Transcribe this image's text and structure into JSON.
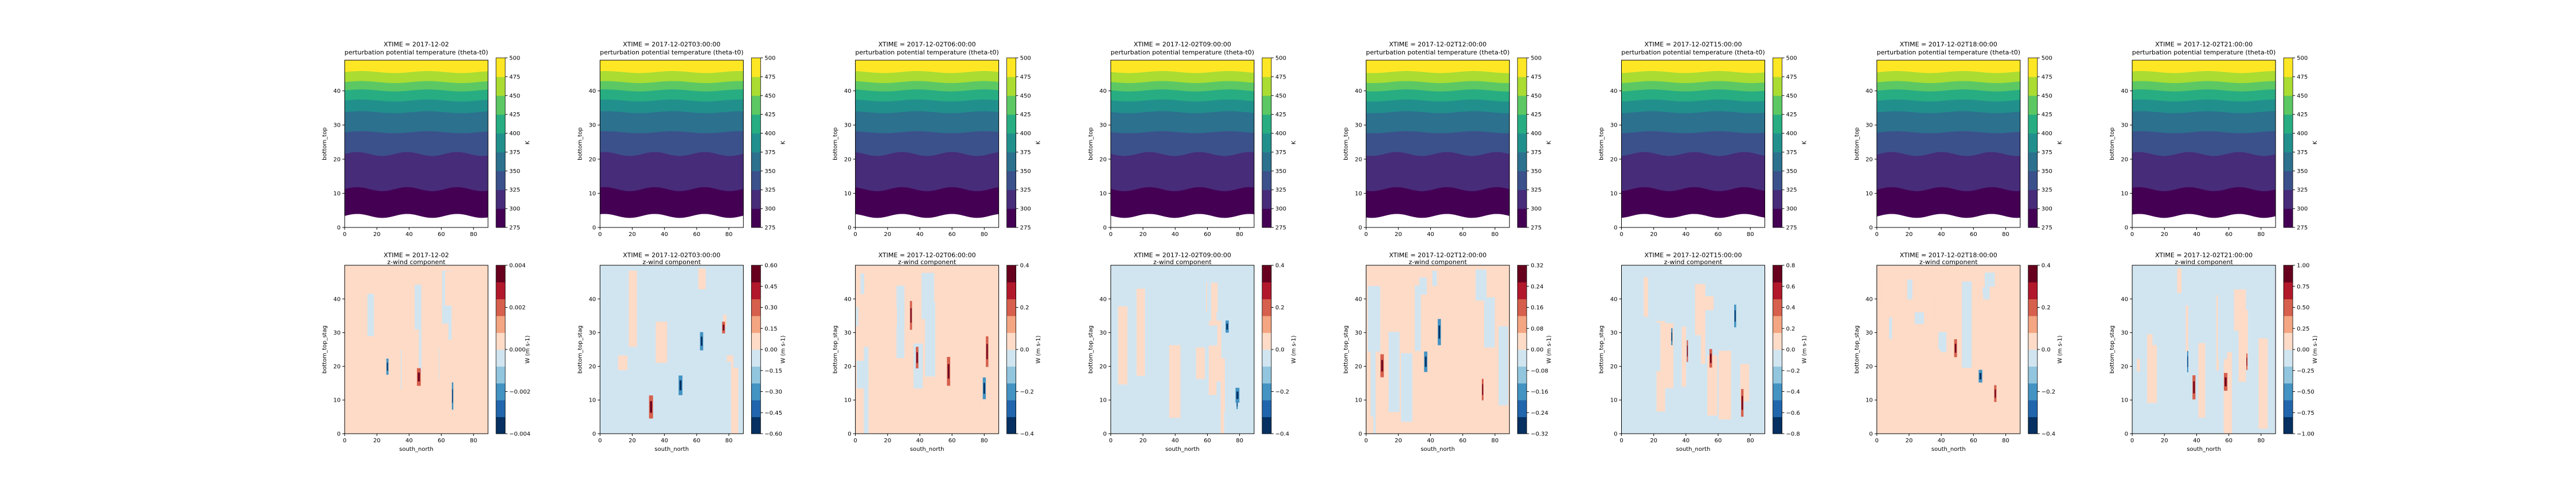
{
  "figure": {
    "top_row_title_line2": "perturbation potential temperature (theta-t0)",
    "bottom_row_title_line2": "z-wind component",
    "top_ylabel": "bottom_top",
    "bottom_ylabel": "bottom_top_stag",
    "bottom_xlabel": "south_north",
    "top_cbar_label": "K",
    "bottom_cbar_label": "W (m s-1)"
  },
  "chart_data": [
    {
      "type": "heatmap",
      "row": "theta",
      "title": "XTIME = 2017-12-02",
      "xlim": [
        0,
        89
      ],
      "ylim": [
        0,
        49
      ],
      "x_ticks": [
        "0",
        "20",
        "40",
        "60",
        "80"
      ],
      "y_ticks": [
        "0",
        "10",
        "20",
        "30",
        "40"
      ],
      "colormap": "viridis",
      "levels": [
        275,
        300,
        325,
        350,
        375,
        400,
        425,
        450,
        475,
        500
      ],
      "cbar_ticks": [
        "275",
        "300",
        "325",
        "350",
        "375",
        "400",
        "425",
        "450",
        "475",
        "500"
      ],
      "cbar_label": "K"
    },
    {
      "type": "heatmap",
      "row": "theta",
      "title": "XTIME = 2017-12-02T03:00:00",
      "xlim": [
        0,
        89
      ],
      "ylim": [
        0,
        49
      ],
      "x_ticks": [
        "0",
        "20",
        "40",
        "60",
        "80"
      ],
      "y_ticks": [
        "0",
        "10",
        "20",
        "30",
        "40"
      ],
      "colormap": "viridis",
      "levels": [
        275,
        300,
        325,
        350,
        375,
        400,
        425,
        450,
        475,
        500
      ],
      "cbar_ticks": [
        "275",
        "300",
        "325",
        "350",
        "375",
        "400",
        "425",
        "450",
        "475",
        "500"
      ],
      "cbar_label": "K"
    },
    {
      "type": "heatmap",
      "row": "theta",
      "title": "XTIME = 2017-12-02T06:00:00",
      "xlim": [
        0,
        89
      ],
      "ylim": [
        0,
        49
      ],
      "x_ticks": [
        "0",
        "20",
        "40",
        "60",
        "80"
      ],
      "y_ticks": [
        "0",
        "10",
        "20",
        "30",
        "40"
      ],
      "colormap": "viridis",
      "levels": [
        275,
        300,
        325,
        350,
        375,
        400,
        425,
        450,
        475,
        500
      ],
      "cbar_ticks": [
        "275",
        "300",
        "325",
        "350",
        "375",
        "400",
        "425",
        "450",
        "475",
        "500"
      ],
      "cbar_label": "K"
    },
    {
      "type": "heatmap",
      "row": "theta",
      "title": "XTIME = 2017-12-02T09:00:00",
      "xlim": [
        0,
        89
      ],
      "ylim": [
        0,
        49
      ],
      "x_ticks": [
        "0",
        "20",
        "40",
        "60",
        "80"
      ],
      "y_ticks": [
        "0",
        "10",
        "20",
        "30",
        "40"
      ],
      "colormap": "viridis",
      "levels": [
        275,
        300,
        325,
        350,
        375,
        400,
        425,
        450,
        475,
        500
      ],
      "cbar_ticks": [
        "275",
        "300",
        "325",
        "350",
        "375",
        "400",
        "425",
        "450",
        "475",
        "500"
      ],
      "cbar_label": "K"
    },
    {
      "type": "heatmap",
      "row": "theta",
      "title": "XTIME = 2017-12-02T12:00:00",
      "xlim": [
        0,
        89
      ],
      "ylim": [
        0,
        49
      ],
      "x_ticks": [
        "0",
        "20",
        "40",
        "60",
        "80"
      ],
      "y_ticks": [
        "0",
        "10",
        "20",
        "30",
        "40"
      ],
      "colormap": "viridis",
      "levels": [
        275,
        300,
        325,
        350,
        375,
        400,
        425,
        450,
        475,
        500
      ],
      "cbar_ticks": [
        "275",
        "300",
        "325",
        "350",
        "375",
        "400",
        "425",
        "450",
        "475",
        "500"
      ],
      "cbar_label": "K"
    },
    {
      "type": "heatmap",
      "row": "theta",
      "title": "XTIME = 2017-12-02T15:00:00",
      "xlim": [
        0,
        89
      ],
      "ylim": [
        0,
        49
      ],
      "x_ticks": [
        "0",
        "20",
        "40",
        "60",
        "80"
      ],
      "y_ticks": [
        "0",
        "10",
        "20",
        "30",
        "40"
      ],
      "colormap": "viridis",
      "levels": [
        275,
        300,
        325,
        350,
        375,
        400,
        425,
        450,
        475,
        500
      ],
      "cbar_ticks": [
        "275",
        "300",
        "325",
        "350",
        "375",
        "400",
        "425",
        "450",
        "475",
        "500"
      ],
      "cbar_label": "K"
    },
    {
      "type": "heatmap",
      "row": "theta",
      "title": "XTIME = 2017-12-02T18:00:00",
      "xlim": [
        0,
        89
      ],
      "ylim": [
        0,
        49
      ],
      "x_ticks": [
        "0",
        "20",
        "40",
        "60",
        "80"
      ],
      "y_ticks": [
        "0",
        "10",
        "20",
        "30",
        "40"
      ],
      "colormap": "viridis",
      "levels": [
        275,
        300,
        325,
        350,
        375,
        400,
        425,
        450,
        475,
        500
      ],
      "cbar_ticks": [
        "275",
        "300",
        "325",
        "350",
        "375",
        "400",
        "425",
        "450",
        "475",
        "500"
      ],
      "cbar_label": "K"
    },
    {
      "type": "heatmap",
      "row": "theta",
      "title": "XTIME = 2017-12-02T21:00:00",
      "xlim": [
        0,
        89
      ],
      "ylim": [
        0,
        49
      ],
      "x_ticks": [
        "0",
        "20",
        "40",
        "60",
        "80"
      ],
      "y_ticks": [
        "0",
        "10",
        "20",
        "30",
        "40"
      ],
      "colormap": "viridis",
      "levels": [
        275,
        300,
        325,
        350,
        375,
        400,
        425,
        450,
        475,
        500
      ],
      "cbar_ticks": [
        "275",
        "300",
        "325",
        "350",
        "375",
        "400",
        "425",
        "450",
        "475",
        "500"
      ],
      "cbar_label": "K"
    },
    {
      "type": "heatmap",
      "row": "w",
      "title": "XTIME = 2017-12-02",
      "xlim": [
        0,
        89
      ],
      "ylim": [
        0,
        50
      ],
      "x_ticks": [
        "0",
        "20",
        "40",
        "60",
        "80"
      ],
      "y_ticks": [
        "0",
        "10",
        "20",
        "30",
        "40"
      ],
      "colormap": "RdBu_r",
      "levels": [
        -0.005,
        -0.004,
        -0.003,
        -0.002,
        -0.001,
        0,
        0.001,
        0.002,
        0.003,
        0.004,
        0.005
      ],
      "cbar_ticks": [
        "0.004",
        "0.002",
        "0.000",
        "−0.002",
        "−0.004"
      ],
      "cbar_label": "W (m s-1)"
    },
    {
      "type": "heatmap",
      "row": "w",
      "title": "XTIME = 2017-12-02T03:00:00",
      "xlim": [
        0,
        89
      ],
      "ylim": [
        0,
        50
      ],
      "x_ticks": [
        "0",
        "20",
        "40",
        "60",
        "80"
      ],
      "y_ticks": [
        "0",
        "10",
        "20",
        "30",
        "40"
      ],
      "colormap": "RdBu_r",
      "levels": [
        -0.6,
        -0.45,
        -0.3,
        -0.15,
        0,
        0.15,
        0.3,
        0.45,
        0.6
      ],
      "cbar_ticks": [
        "0.60",
        "0.45",
        "0.30",
        "0.15",
        "0.00",
        "−0.15",
        "−0.30",
        "−0.45",
        "−0.60"
      ],
      "cbar_label": "W (m s-1)"
    },
    {
      "type": "heatmap",
      "row": "w",
      "title": "XTIME = 2017-12-02T06:00:00",
      "xlim": [
        0,
        89
      ],
      "ylim": [
        0,
        50
      ],
      "x_ticks": [
        "0",
        "20",
        "40",
        "60",
        "80"
      ],
      "y_ticks": [
        "0",
        "10",
        "20",
        "30",
        "40"
      ],
      "colormap": "RdBu_r",
      "levels": [
        -0.5,
        -0.4,
        -0.3,
        -0.2,
        -0.1,
        0,
        0.1,
        0.2,
        0.3,
        0.4,
        0.5
      ],
      "cbar_ticks": [
        "0.4",
        "0.2",
        "0.0",
        "−0.2",
        "−0.4"
      ],
      "cbar_label": "W (m s-1)"
    },
    {
      "type": "heatmap",
      "row": "w",
      "title": "XTIME = 2017-12-02T09:00:00",
      "xlim": [
        0,
        89
      ],
      "ylim": [
        0,
        50
      ],
      "x_ticks": [
        "0",
        "20",
        "40",
        "60",
        "80"
      ],
      "y_ticks": [
        "0",
        "10",
        "20",
        "30",
        "40"
      ],
      "colormap": "RdBu_r",
      "levels": [
        -0.5,
        -0.4,
        -0.3,
        -0.2,
        -0.1,
        0,
        0.1,
        0.2,
        0.3,
        0.4,
        0.5
      ],
      "cbar_ticks": [
        "0.4",
        "0.2",
        "0.0",
        "−0.2",
        "−0.4"
      ],
      "cbar_label": "W (m s-1)"
    },
    {
      "type": "heatmap",
      "row": "w",
      "title": "XTIME = 2017-12-02T12:00:00",
      "xlim": [
        0,
        89
      ],
      "ylim": [
        0,
        50
      ],
      "x_ticks": [
        "0",
        "20",
        "40",
        "60",
        "80"
      ],
      "y_ticks": [
        "0",
        "10",
        "20",
        "30",
        "40"
      ],
      "colormap": "RdBu_r",
      "levels": [
        -0.32,
        -0.24,
        -0.16,
        -0.08,
        0,
        0.08,
        0.16,
        0.24,
        0.32
      ],
      "cbar_ticks": [
        "0.32",
        "0.24",
        "0.16",
        "0.08",
        "0.00",
        "−0.08",
        "−0.16",
        "−0.24",
        "−0.32"
      ],
      "cbar_label": "W (m s-1)"
    },
    {
      "type": "heatmap",
      "row": "w",
      "title": "XTIME = 2017-12-02T15:00:00",
      "xlim": [
        0,
        89
      ],
      "ylim": [
        0,
        50
      ],
      "x_ticks": [
        "0",
        "20",
        "40",
        "60",
        "80"
      ],
      "y_ticks": [
        "0",
        "10",
        "20",
        "30",
        "40"
      ],
      "colormap": "RdBu_r",
      "levels": [
        -0.8,
        -0.6,
        -0.4,
        -0.2,
        0,
        0.2,
        0.4,
        0.6,
        0.8
      ],
      "cbar_ticks": [
        "0.8",
        "0.6",
        "0.4",
        "0.2",
        "0.0",
        "−0.2",
        "−0.4",
        "−0.6",
        "−0.8"
      ],
      "cbar_label": "W (m s-1)"
    },
    {
      "type": "heatmap",
      "row": "w",
      "title": "XTIME = 2017-12-02T18:00:00",
      "xlim": [
        0,
        89
      ],
      "ylim": [
        0,
        50
      ],
      "x_ticks": [
        "0",
        "20",
        "40",
        "60",
        "80"
      ],
      "y_ticks": [
        "0",
        "10",
        "20",
        "30",
        "40"
      ],
      "colormap": "RdBu_r",
      "levels": [
        -0.5,
        -0.4,
        -0.3,
        -0.2,
        -0.1,
        0,
        0.1,
        0.2,
        0.3,
        0.4,
        0.5
      ],
      "cbar_ticks": [
        "0.4",
        "0.2",
        "0.0",
        "−0.2",
        "−0.4"
      ],
      "cbar_label": "W (m s-1)"
    },
    {
      "type": "heatmap",
      "row": "w",
      "title": "XTIME = 2017-12-02T21:00:00",
      "xlim": [
        0,
        89
      ],
      "ylim": [
        0,
        50
      ],
      "x_ticks": [
        "0",
        "20",
        "40",
        "60",
        "80"
      ],
      "y_ticks": [
        "0",
        "10",
        "20",
        "30",
        "40"
      ],
      "colormap": "RdBu_r",
      "levels": [
        -1.0,
        -0.75,
        -0.5,
        -0.25,
        0,
        0.25,
        0.5,
        0.75,
        1.0
      ],
      "cbar_ticks": [
        "1.00",
        "0.75",
        "0.50",
        "0.25",
        "0.00",
        "−0.25",
        "−0.50",
        "−0.75",
        "−1.00"
      ],
      "cbar_label": "W (m s-1)"
    }
  ]
}
